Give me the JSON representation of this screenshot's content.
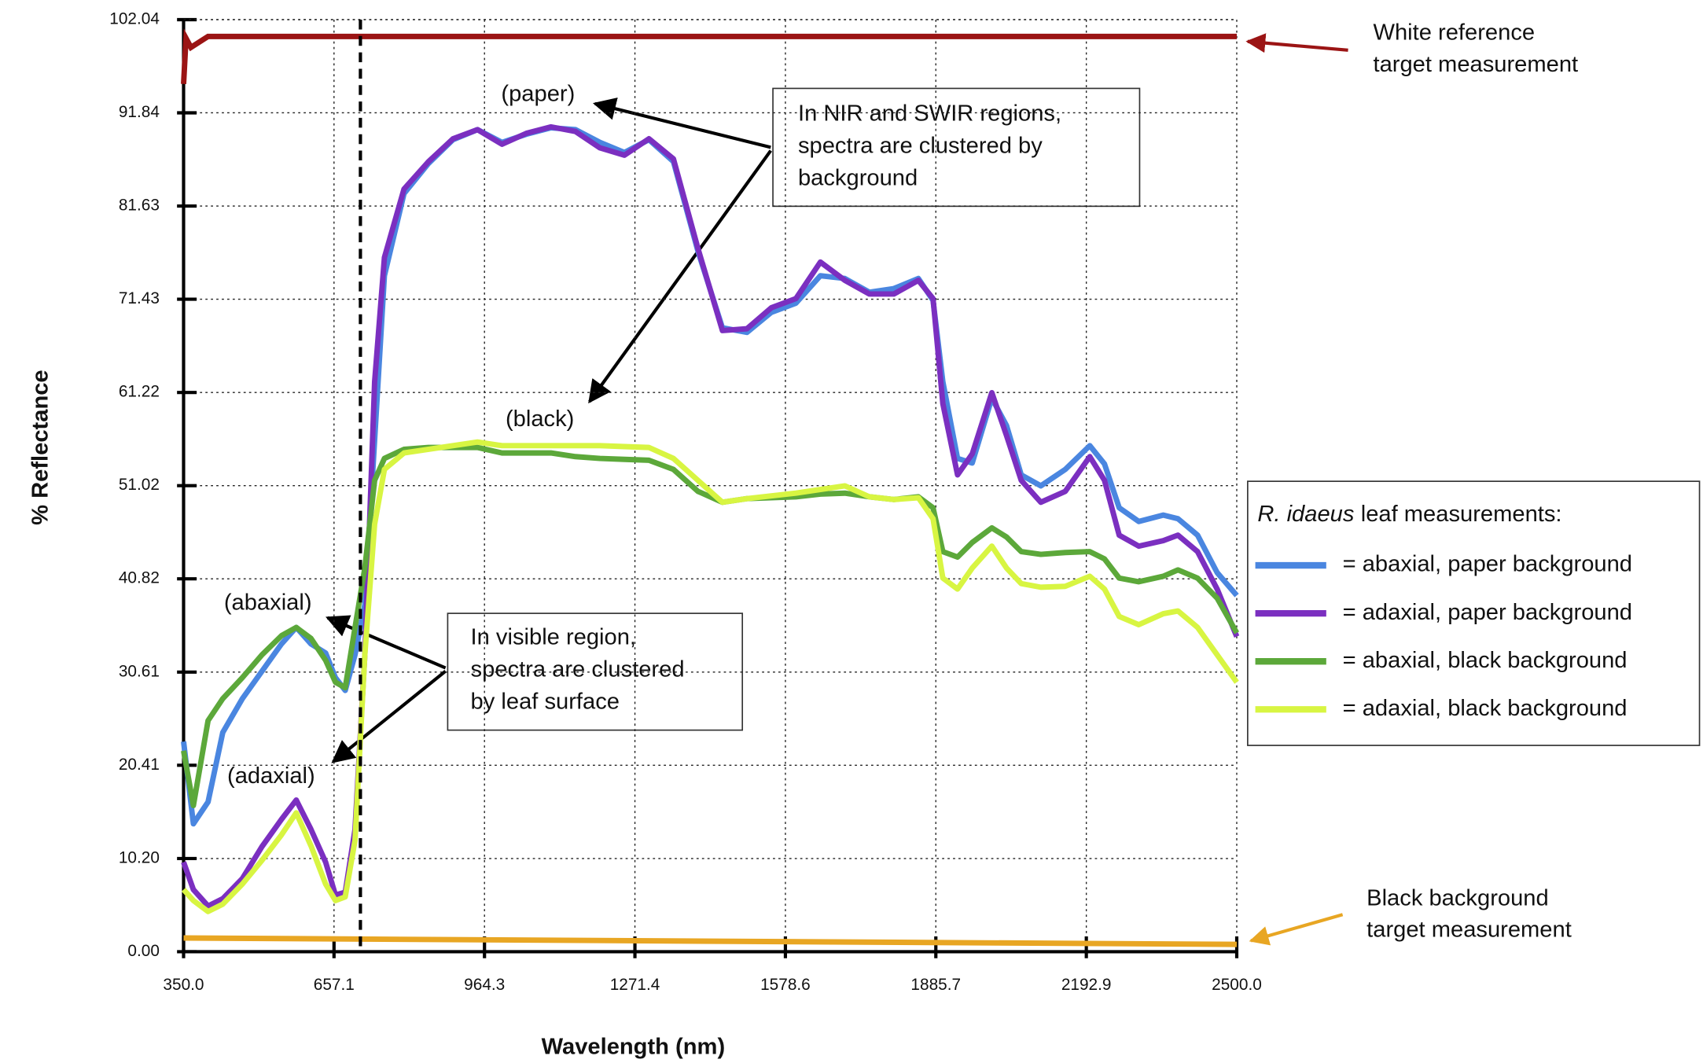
{
  "chart_data": {
    "type": "line",
    "x_label": "Wavelength (nm)",
    "y_label": "% Reflectance",
    "xlim": [
      350,
      2500
    ],
    "xticks": [
      {
        "value": 350,
        "label": "350.0"
      },
      657.1,
      964.3,
      1271.4,
      1578.6,
      1885.7,
      2192.9,
      {
        "value": 2500,
        "label": "2500.0"
      }
    ],
    "ylim": [
      0,
      102.04
    ],
    "yticks": [
      {
        "value": 0,
        "label": "0.00"
      },
      {
        "value": 10.2,
        "label": "10.20"
      },
      20.41,
      30.61,
      40.82,
      51.02,
      61.22,
      71.43,
      81.63,
      91.84,
      102.04
    ],
    "grid": true,
    "legend_title_italic": "R. idaeus",
    "legend_title": "leaf measurements:",
    "legend_position": "right",
    "marker_line_x": 711,
    "x": [
      350,
      370,
      400,
      430,
      470,
      510,
      550,
      580,
      610,
      640,
      660,
      680,
      700,
      720,
      740,
      760,
      800,
      850,
      900,
      950,
      1000,
      1050,
      1100,
      1150,
      1200,
      1250,
      1300,
      1350,
      1400,
      1450,
      1500,
      1550,
      1600,
      1650,
      1700,
      1750,
      1800,
      1850,
      1880,
      1900,
      1930,
      1960,
      2000,
      2030,
      2060,
      2100,
      2150,
      2200,
      2230,
      2260,
      2300,
      2350,
      2380,
      2420,
      2460,
      2500
    ],
    "series": [
      {
        "name": "= abaxial, paper background",
        "color": "#4a86e0",
        "values": [
          23,
          14,
          16.4,
          24,
          27.7,
          30.7,
          33.7,
          35.5,
          33.7,
          32.7,
          30,
          28.6,
          32.5,
          38,
          56,
          74,
          83,
          86.3,
          88.9,
          90,
          88.6,
          89.5,
          90.2,
          90,
          88.6,
          87.5,
          88.9,
          86.5,
          76.7,
          68.3,
          67.8,
          70,
          71,
          74,
          73.7,
          72.2,
          72.6,
          73.7,
          71.3,
          62.4,
          54,
          53.5,
          60.6,
          57.6,
          52.2,
          51,
          52.8,
          55.4,
          53.4,
          48.6,
          47.1,
          47.8,
          47.4,
          45.6,
          41.5,
          39
        ]
      },
      {
        "name": "= adaxial, paper background",
        "color": "#7b2fc0",
        "values": [
          9.8,
          6.8,
          5,
          5.8,
          8,
          11.5,
          14.5,
          16.6,
          13.4,
          9.8,
          6.2,
          6.5,
          13.4,
          32.5,
          62.4,
          76,
          83.5,
          86.5,
          89,
          90,
          88.4,
          89.6,
          90.3,
          89.8,
          88,
          87.2,
          89,
          86.8,
          77,
          68,
          68.2,
          70.5,
          71.5,
          75.5,
          73.5,
          72,
          72,
          73.5,
          71.5,
          60,
          52.2,
          54.5,
          61.2,
          56.5,
          51.6,
          49.2,
          50.4,
          54.2,
          51.6,
          45.6,
          44.4,
          45,
          45.6,
          43.8,
          39.7,
          34.5
        ]
      },
      {
        "name": "= abaxial, black background",
        "color": "#5ca83a",
        "values": [
          22,
          16,
          25.3,
          27.7,
          30,
          32.5,
          34.6,
          35.5,
          34.3,
          31.9,
          29.5,
          28.9,
          35.5,
          42,
          51.6,
          54,
          55,
          55.2,
          55.2,
          55.2,
          54.6,
          54.6,
          54.6,
          54.2,
          54,
          53.9,
          53.8,
          52.8,
          50.4,
          49.2,
          49.6,
          49.7,
          49.8,
          50.1,
          50.2,
          49.8,
          49.5,
          49.8,
          48.6,
          43.8,
          43.2,
          44.8,
          46.4,
          45.4,
          43.8,
          43.5,
          43.7,
          43.8,
          43,
          40.9,
          40.5,
          41.1,
          41.8,
          40.9,
          38.7,
          34.9
        ]
      },
      {
        "name": "= adaxial, black background",
        "color": "#d8f542",
        "values": [
          6.8,
          5.6,
          4.4,
          5.2,
          7.4,
          10,
          12.8,
          15.2,
          11.6,
          7.4,
          5.6,
          6,
          12.2,
          32.5,
          46.8,
          52.8,
          54.6,
          55,
          55.4,
          55.8,
          55.4,
          55.4,
          55.4,
          55.4,
          55.4,
          55.3,
          55.2,
          54,
          51.6,
          49.2,
          49.6,
          49.9,
          50.2,
          50.6,
          51,
          49.8,
          49.5,
          49.7,
          47.4,
          40.9,
          39.7,
          42,
          44.4,
          42,
          40.3,
          39.9,
          40,
          41.1,
          39.7,
          36.7,
          35.8,
          37,
          37.3,
          35.5,
          32.5,
          29.5
        ]
      }
    ],
    "references": [
      {
        "label": [
          "White reference",
          "target measurement"
        ],
        "color": "#9b1414",
        "x": [
          350,
          355,
          365,
          400,
          2500
        ],
        "values": [
          95,
          100,
          99,
          100.2,
          100.2
        ]
      },
      {
        "label": [
          "Black background",
          "target measurement"
        ],
        "color": "#e8a623",
        "x": [
          350,
          2500
        ],
        "values": [
          1.5,
          0.8
        ]
      }
    ],
    "annotations": [
      {
        "lines": [
          "In NIR and SWIR regions,",
          "spectra are clustered by",
          "background"
        ]
      },
      {
        "lines": [
          "In visible region,",
          "spectra are clustered",
          "by leaf surface"
        ]
      },
      {
        "lines": [
          "(paper)"
        ]
      },
      {
        "lines": [
          "(black)"
        ]
      },
      {
        "lines": [
          "(abaxial)"
        ]
      },
      {
        "lines": [
          "(adaxial)"
        ]
      }
    ]
  }
}
